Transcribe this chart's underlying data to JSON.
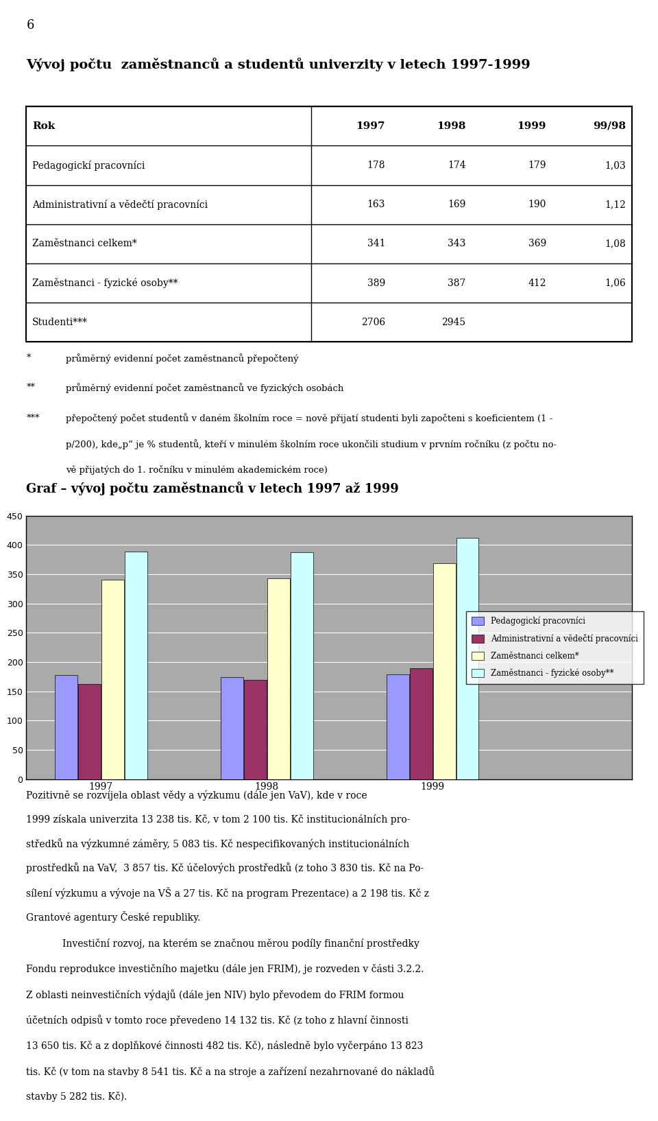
{
  "page_number": "6",
  "main_title": "Vývoj počtu  zaměstnanců a studentů univerzity v letech 1997-1999",
  "table": {
    "col_headers": [
      "Rok",
      "1997",
      "1998",
      "1999",
      "99/98"
    ],
    "rows": [
      {
        "label": "Pedagogickí pracovníci",
        "values": [
          178,
          174,
          179,
          "1,03"
        ]
      },
      {
        "label": "Administrativní a vědečtí pracovníci",
        "values": [
          163,
          169,
          190,
          "1,12"
        ]
      },
      {
        "label": "Zaměstnanci celkem*",
        "values": [
          341,
          343,
          369,
          "1,08"
        ]
      },
      {
        "label": "Zaměstnanci - fyzické osoby**",
        "values": [
          389,
          387,
          412,
          "1,06"
        ]
      },
      {
        "label": "Studenti***",
        "values": [
          2706,
          2945,
          "",
          ""
        ]
      }
    ]
  },
  "footnote_star1": "*",
  "footnote_text1": "průměrný evidenní počet zaměstnanců přepočtený",
  "footnote_star2": "**",
  "footnote_text2": "průměrný evidenní počet zaměstnanců ve fyzických osobách",
  "footnote_star3": "***",
  "footnote_text3_line1": "přepočtený počet studentů v daném školním roce = nově přijatí studenti byli započteni s koeficientem (1 -",
  "footnote_text3_line2": "p/200), kde„p“ je % studentů, kteří v minulém školním roce ukončili studium v prvním ročníku (z počtu no-",
  "footnote_text3_line3": "vě přijatých do 1. ročníku v minulém akademickém roce)",
  "graph_title": "Graf – vývoj počtu zaměstnanců v letech 1997 až 1999",
  "chart": {
    "years": [
      "1997",
      "1998",
      "1999"
    ],
    "series": [
      {
        "name": "Pedagogickí pracovníci",
        "values": [
          178,
          174,
          179
        ],
        "color": "#9999FF"
      },
      {
        "name": "Administrativní a vědečtí pracovníci",
        "values": [
          163,
          169,
          190
        ],
        "color": "#993366"
      },
      {
        "name": "Zaměstnanci celkem*",
        "values": [
          341,
          343,
          369
        ],
        "color": "#FFFFCC"
      },
      {
        "name": "Zaměstnanci - fyzické osoby**",
        "values": [
          389,
          387,
          412
        ],
        "color": "#CCFFFF"
      }
    ],
    "ylim": [
      0,
      450
    ],
    "yticks": [
      0,
      50,
      100,
      150,
      200,
      250,
      300,
      350,
      400,
      450
    ],
    "bg_color": "#AAAAAA"
  },
  "bottom_text_1_lines": [
    "Pozitivně se rozvíjela oblast vědy a výzkumu (dále jen VaV), kde v roce",
    "1999 získala univerzita 13 238 tis. Kč, v tom 2 100 tis. Kč institucionálních pro-",
    "středků na výzkumné záměry, 5 083 tis. Kč nespecifikovaných institucionálních",
    "prostředků na VaV,  3 857 tis. Kč účelových prostředků (z toho 3 830 tis. Kč na Po-",
    "sílení výzkumu a vývoje na VŠ a 27 tis. Kč na program Prezentace) a 2 198 tis. Kč z",
    "Grantové agentury České republiky."
  ],
  "bottom_text_2_lines": [
    "Investiční rozvoj, na kterém se značnou měrou podíly finanční prostředky",
    "Fondu reprodukce investičního majetku (dále jen FRIM), je rozveden v části 3.2.2.",
    "Z oblasti neinvestičních výdajů (dále jen NIV) bylo převodem do FRIM formou",
    "účetních odpisů v tomto roce převedeno 14 132 tis. Kč (z toho z hlavní činnosti",
    "13 650 tis. Kč a z doplňkové činnosti 482 tis. Kč), následně bylo vyčerpáno 13 823",
    "tis. Kč (v tom na stavby 8 541 tis. Kč a na stroje a zařízení nezahrnované do nákladů",
    "stavby 5 282 tis. Kč)."
  ]
}
